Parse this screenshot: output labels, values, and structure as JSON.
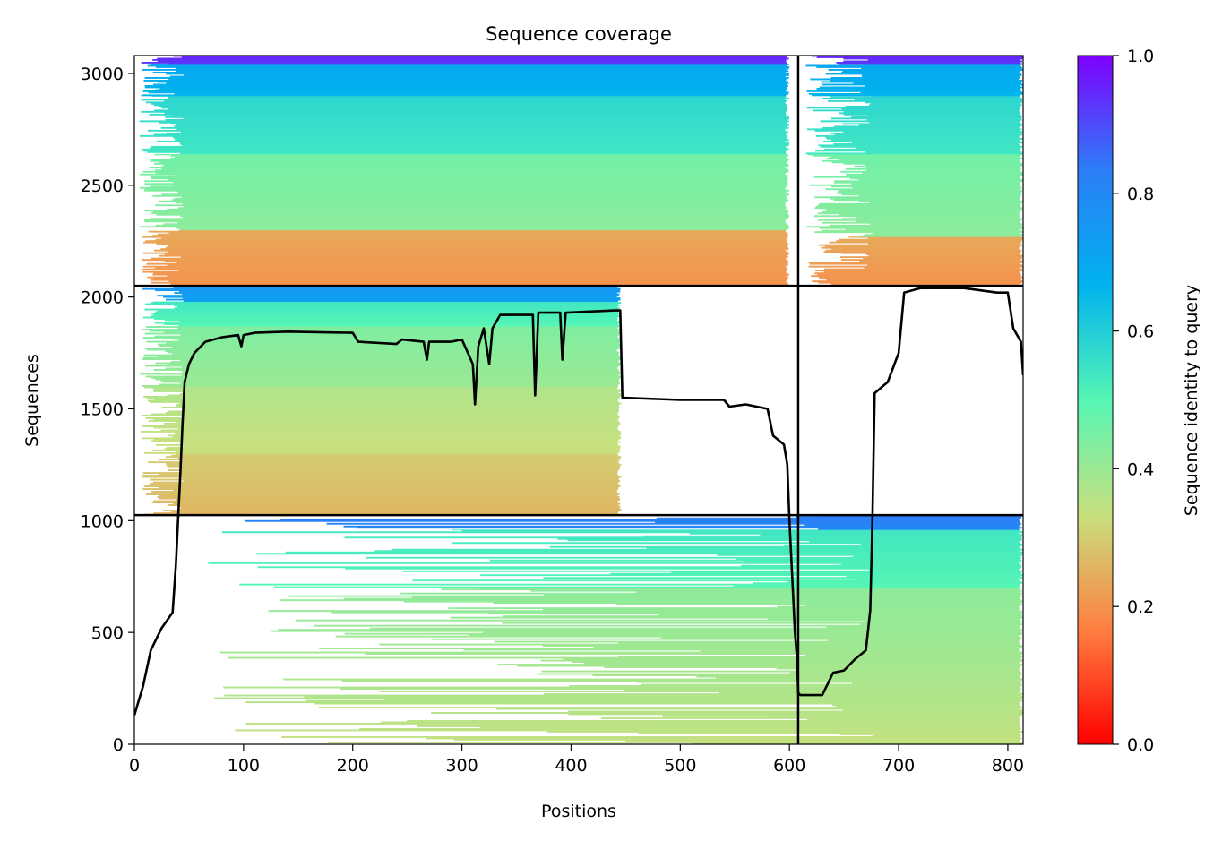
{
  "chart_data": {
    "type": "heatmap",
    "title": "Sequence coverage",
    "xlabel": "Positions",
    "ylabel": "Sequences",
    "xlim": [
      0,
      814
    ],
    "ylim": [
      0,
      3080
    ],
    "x_ticks": [
      0,
      100,
      200,
      300,
      400,
      500,
      600,
      700,
      800
    ],
    "y_ticks": [
      0,
      500,
      1000,
      1500,
      2000,
      2500,
      3000
    ],
    "grid": false,
    "legend": "none",
    "colorbar": {
      "label": "Sequence identity to query",
      "range": [
        0.0,
        1.0
      ],
      "ticks": [
        "0.0",
        "0.2",
        "0.4",
        "0.6",
        "0.8",
        "1.0"
      ],
      "colormap": "rainbow_r",
      "stops": [
        "#ff0000",
        "#ff7f41",
        "#c8e07e",
        "#56f6b5",
        "#00b2ee",
        "#2c7ef7",
        "#7f00ff"
      ]
    },
    "dividers": {
      "vertical_x": 608,
      "horizontal_y": [
        1025,
        2050
      ]
    },
    "blocks": [
      {
        "name": "chain-A-cluster-1",
        "x_start": 0,
        "x_end": 608,
        "y_bottom": 2050,
        "y_top": 3080,
        "core_x_start": 45,
        "core_x_end": 600,
        "identity_bands": [
          {
            "y0": 2050,
            "y1": 2300,
            "identity": 0.2
          },
          {
            "y0": 2300,
            "y1": 2640,
            "identity": 0.42
          },
          {
            "y0": 2640,
            "y1": 2900,
            "identity": 0.54
          },
          {
            "y0": 2900,
            "y1": 3040,
            "identity": 0.66
          },
          {
            "y0": 3040,
            "y1": 3080,
            "identity": 0.92
          }
        ]
      },
      {
        "name": "chain-B-cluster-1",
        "x_start": 608,
        "x_end": 814,
        "y_bottom": 2050,
        "y_top": 3080,
        "core_x_start": 676,
        "core_x_end": 814,
        "identity_bands": [
          {
            "y0": 2050,
            "y1": 2270,
            "identity": 0.2
          },
          {
            "y0": 2270,
            "y1": 2640,
            "identity": 0.42
          },
          {
            "y0": 2640,
            "y1": 2900,
            "identity": 0.54
          },
          {
            "y0": 2900,
            "y1": 3040,
            "identity": 0.66
          },
          {
            "y0": 3040,
            "y1": 3080,
            "identity": 0.92
          }
        ]
      },
      {
        "name": "chain-A-cluster-2",
        "x_start": 0,
        "x_end": 608,
        "y_bottom": 1025,
        "y_top": 2050,
        "core_x_start": 45,
        "core_x_end": 446,
        "identity_bands": [
          {
            "y0": 1025,
            "y1": 1300,
            "identity": 0.26
          },
          {
            "y0": 1300,
            "y1": 1600,
            "identity": 0.33
          },
          {
            "y0": 1600,
            "y1": 1870,
            "identity": 0.4
          },
          {
            "y0": 1870,
            "y1": 1980,
            "identity": 0.5
          },
          {
            "y0": 1980,
            "y1": 2050,
            "identity": 0.72
          }
        ]
      },
      {
        "name": "chain-B-cluster-2",
        "x_start": 0,
        "x_end": 814,
        "y_bottom": 0,
        "y_top": 1025,
        "core_x_start": 676,
        "core_x_end": 814,
        "identity_bands": [
          {
            "y0": 0,
            "y1": 300,
            "identity": 0.34
          },
          {
            "y0": 300,
            "y1": 700,
            "identity": 0.38
          },
          {
            "y0": 700,
            "y1": 960,
            "identity": 0.5
          },
          {
            "y0": 960,
            "y1": 1025,
            "identity": 0.8
          }
        ]
      }
    ],
    "coverage_line": {
      "name": "coverage",
      "x": [
        0,
        8,
        15,
        25,
        35,
        38,
        40,
        42,
        44,
        46,
        50,
        55,
        65,
        80,
        95,
        98,
        100,
        110,
        140,
        200,
        205,
        240,
        245,
        265,
        268,
        270,
        290,
        300,
        310,
        312,
        315,
        320,
        325,
        328,
        335,
        340,
        365,
        367,
        370,
        390,
        392,
        395,
        440,
        445,
        447,
        500,
        540,
        545,
        560,
        580,
        585,
        595,
        598,
        600,
        603,
        605,
        607,
        608,
        610,
        630,
        640,
        650,
        660,
        670,
        674,
        676,
        678,
        690,
        700,
        705,
        720,
        760,
        790,
        800,
        805,
        812,
        814
      ],
      "y": [
        130,
        260,
        420,
        520,
        590,
        800,
        1000,
        1200,
        1420,
        1620,
        1700,
        1750,
        1800,
        1820,
        1830,
        1780,
        1830,
        1840,
        1845,
        1840,
        1800,
        1790,
        1810,
        1800,
        1720,
        1800,
        1800,
        1810,
        1700,
        1520,
        1780,
        1860,
        1700,
        1860,
        1920,
        1920,
        1920,
        1560,
        1930,
        1930,
        1720,
        1930,
        1940,
        1940,
        1550,
        1540,
        1540,
        1510,
        1520,
        1500,
        1380,
        1340,
        1250,
        1000,
        700,
        500,
        380,
        230,
        220,
        220,
        320,
        330,
        380,
        420,
        600,
        1000,
        1570,
        1620,
        1750,
        2020,
        2040,
        2040,
        2020,
        2020,
        1860,
        1800,
        1650
      ]
    }
  }
}
